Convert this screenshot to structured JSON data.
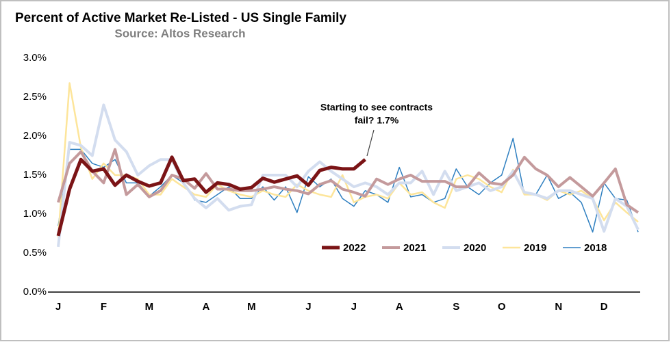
{
  "chart_data": {
    "type": "line",
    "title": "Percent of Active Market Re-Listed - US Single Family",
    "subtitle": "Source: Altos Research",
    "annotation": [
      "Starting to see contracts",
      "fail? 1.7%"
    ],
    "categories": [
      "J",
      null,
      null,
      null,
      "F",
      null,
      null,
      null,
      "M",
      null,
      null,
      null,
      null,
      "A",
      null,
      null,
      null,
      "M",
      null,
      null,
      null,
      null,
      "J",
      null,
      null,
      null,
      "J",
      null,
      null,
      null,
      "A",
      null,
      null,
      null,
      null,
      "S",
      null,
      null,
      null,
      "O",
      null,
      null,
      null,
      null,
      "N",
      null,
      null,
      null,
      "D",
      null,
      null,
      null
    ],
    "ylim": [
      0,
      3.0
    ],
    "yticks": [
      {
        "value": 0,
        "label": "0.0%"
      },
      {
        "value": 0.5,
        "label": "0.5%"
      },
      {
        "value": 1.0,
        "label": "1.0%"
      },
      {
        "value": 1.5,
        "label": "1.5%"
      },
      {
        "value": 2.0,
        "label": "2.0%"
      },
      {
        "value": 2.5,
        "label": "2.5%"
      },
      {
        "value": 3.0,
        "label": "3.0%"
      }
    ],
    "legend": "bottom",
    "series": [
      {
        "name": "2022",
        "color": "#7b1416",
        "values": [
          0.72,
          1.32,
          1.7,
          1.55,
          1.58,
          1.37,
          1.5,
          1.42,
          1.36,
          1.4,
          1.73,
          1.43,
          1.45,
          1.28,
          1.4,
          1.38,
          1.32,
          1.34,
          1.46,
          1.41,
          1.45,
          1.49,
          1.37,
          1.56,
          1.6,
          1.58,
          1.58,
          1.7,
          null,
          null,
          null,
          null,
          null,
          null,
          null,
          null,
          null,
          null,
          null,
          null,
          null,
          null,
          null,
          null,
          null,
          null,
          null,
          null,
          null,
          null,
          null,
          null
        ]
      },
      {
        "name": "2021",
        "color": "#c49a9c",
        "values": [
          1.15,
          1.65,
          1.8,
          1.55,
          1.4,
          1.83,
          1.25,
          1.38,
          1.22,
          1.3,
          1.5,
          1.45,
          1.33,
          1.52,
          1.32,
          1.32,
          1.3,
          1.3,
          1.32,
          1.35,
          1.32,
          1.3,
          1.26,
          1.38,
          1.43,
          1.32,
          1.28,
          1.23,
          1.45,
          1.38,
          1.45,
          1.5,
          1.42,
          1.42,
          1.42,
          1.35,
          1.35,
          1.53,
          1.4,
          1.38,
          1.5,
          1.73,
          1.58,
          1.5,
          1.35,
          1.47,
          1.35,
          1.23,
          1.4,
          1.58,
          1.12,
          1.02
        ]
      },
      {
        "name": "2020",
        "color": "#d3ddef",
        "values": [
          0.58,
          1.92,
          1.88,
          1.75,
          2.4,
          1.95,
          1.8,
          1.5,
          1.62,
          1.7,
          1.7,
          1.4,
          1.2,
          1.08,
          1.2,
          1.05,
          1.1,
          1.12,
          1.5,
          1.5,
          1.5,
          1.35,
          1.55,
          1.67,
          1.55,
          1.45,
          1.35,
          1.4,
          1.35,
          1.25,
          1.4,
          1.4,
          1.55,
          1.25,
          1.55,
          1.3,
          1.35,
          1.4,
          1.3,
          1.35,
          1.55,
          1.28,
          1.25,
          1.2,
          1.3,
          1.3,
          1.25,
          1.2,
          0.78,
          1.2,
          1.1,
          0.8
        ]
      },
      {
        "name": "2019",
        "color": "#fde59a",
        "values": [
          0.7,
          2.68,
          1.85,
          1.45,
          1.65,
          1.5,
          1.5,
          1.45,
          1.25,
          1.25,
          1.45,
          1.35,
          1.25,
          1.22,
          1.38,
          1.3,
          1.25,
          1.22,
          1.3,
          1.25,
          1.22,
          1.38,
          1.3,
          1.25,
          1.22,
          1.5,
          1.15,
          1.22,
          1.25,
          1.2,
          1.4,
          1.25,
          1.28,
          1.15,
          1.08,
          1.45,
          1.5,
          1.45,
          1.35,
          1.28,
          1.57,
          1.25,
          1.25,
          1.18,
          1.3,
          1.25,
          1.3,
          1.2,
          0.92,
          1.15,
          1.02,
          0.9
        ]
      },
      {
        "name": "2018",
        "color": "#2e7fc0",
        "values": [
          0.85,
          1.83,
          1.83,
          1.65,
          1.6,
          1.7,
          1.4,
          1.4,
          1.23,
          1.35,
          1.5,
          1.4,
          1.18,
          1.15,
          1.25,
          1.35,
          1.2,
          1.2,
          1.35,
          1.18,
          1.35,
          1.02,
          1.48,
          1.35,
          1.45,
          1.2,
          1.1,
          1.3,
          1.25,
          1.15,
          1.6,
          1.22,
          1.25,
          1.15,
          1.2,
          1.58,
          1.35,
          1.25,
          1.4,
          1.5,
          1.97,
          1.25,
          1.25,
          1.5,
          1.2,
          1.28,
          1.15,
          0.77,
          1.4,
          1.2,
          1.18,
          0.77
        ]
      }
    ]
  }
}
